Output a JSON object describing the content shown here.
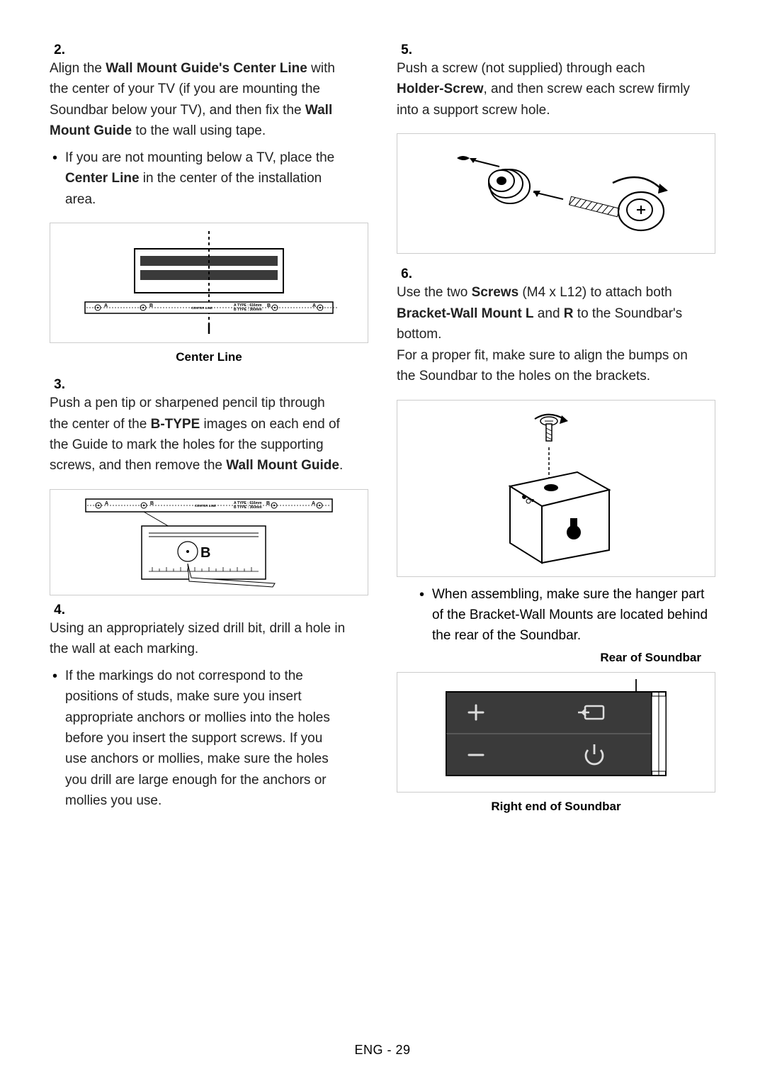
{
  "left": {
    "step2": {
      "num": "2.",
      "lines": [
        [
          {
            "t": "Align the "
          },
          {
            "t": "Wall Mount Guide's Center Line",
            "b": true
          },
          {
            "t": " with the center of your TV (if you are mounting the Soundbar below your TV), and then fix the "
          },
          {
            "t": "Wall Mount Guide",
            "b": true
          },
          {
            "t": " to the wall using tape."
          }
        ]
      ],
      "bullet": [
        {
          "t": "If you are not mounting below a TV, place the "
        },
        {
          "t": "Center Line",
          "b": true
        },
        {
          "t": " in the center of the installation area."
        }
      ],
      "diagram": {
        "labels": {
          "A": "A",
          "B": "B",
          "center": "CENTER LINE",
          "atype": "A TYPE : 616mm",
          "btype": "B TYPE : 360mm"
        },
        "caption": "Center Line"
      }
    },
    "step3": {
      "num": "3.",
      "lines": [
        [
          {
            "t": "Push a pen tip or sharpened pencil tip through the center of the "
          },
          {
            "t": "B-TYPE",
            "b": true
          },
          {
            "t": " images on each end of the Guide to mark the holes for the supporting screws, and then remove the "
          },
          {
            "t": "Wall Mount Guide",
            "b": true
          },
          {
            "t": "."
          }
        ]
      ],
      "diagram": {
        "B": "B"
      }
    },
    "step4": {
      "num": "4.",
      "lines": [
        [
          {
            "t": "Using an appropriately sized drill bit, drill a hole in the wall at each marking."
          }
        ]
      ],
      "bullet": [
        {
          "t": "If the markings do not correspond to the positions of studs, make sure you insert appropriate anchors or mollies into the holes before you insert the support screws. If you use anchors or mollies, make sure the holes you drill are large enough for the anchors or mollies you use."
        }
      ]
    }
  },
  "right": {
    "step5": {
      "num": "5.",
      "lines": [
        [
          {
            "t": "Push a screw (not supplied) through each "
          },
          {
            "t": "Holder-Screw",
            "b": true
          },
          {
            "t": ", and then screw each screw firmly into a support screw hole."
          }
        ]
      ]
    },
    "step6": {
      "num": "6.",
      "lines": [
        [
          {
            "t": "Use the two "
          },
          {
            "t": "Screws",
            "b": true
          },
          {
            "t": " (M4 x L12) to attach both "
          },
          {
            "t": "Bracket-Wall Mount L",
            "b": true
          },
          {
            "t": " and "
          },
          {
            "t": "R",
            "b": true
          },
          {
            "t": " to the Soundbar's bottom."
          }
        ],
        [
          {
            "t": "For a proper fit, make sure to align the bumps on the Soundbar to the holes on the brackets."
          }
        ]
      ],
      "bullet": [
        {
          "t": "When assembling, make sure the hanger part of the "
        },
        {
          "t": "Bracket-Wall Mounts",
          "b": true
        },
        {
          "t": " are located behind the rear of the Soundbar."
        }
      ],
      "rear_label": "Rear of Soundbar",
      "right_end_label": "Right end of Soundbar"
    }
  },
  "footer": "ENG - 29",
  "colors": {
    "text": "#000000",
    "border": "#cccccc",
    "stroke": "#000000",
    "fill_dark": "#3a3a3a",
    "fill_gray": "#9c9c9c",
    "bg": "#ffffff"
  }
}
